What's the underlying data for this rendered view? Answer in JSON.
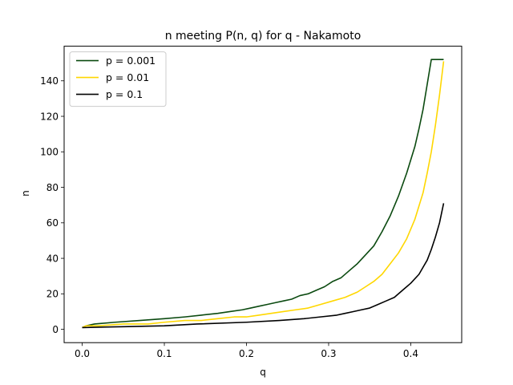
{
  "chart_data": {
    "type": "line",
    "title": "n meeting P(n, q) for q - Nakamoto",
    "xlabel": "q",
    "ylabel": "n",
    "xlim": [
      -0.022,
      0.462
    ],
    "ylim": [
      -7.5,
      159.5
    ],
    "xticks": [
      0.0,
      0.1,
      0.2,
      0.3,
      0.4
    ],
    "xtick_labels": [
      "0.0",
      "0.1",
      "0.2",
      "0.3",
      "0.4"
    ],
    "yticks": [
      0,
      20,
      40,
      60,
      80,
      100,
      120,
      140
    ],
    "ytick_labels": [
      "0",
      "20",
      "40",
      "60",
      "80",
      "100",
      "120",
      "140"
    ],
    "grid": false,
    "legend_position": "upper left",
    "series": [
      {
        "name": "p = 0.001",
        "color": "#0b4a10",
        "x": [
          0.0,
          0.005,
          0.015,
          0.04,
          0.07,
          0.1,
          0.125,
          0.145,
          0.165,
          0.18,
          0.195,
          0.205,
          0.215,
          0.225,
          0.235,
          0.245,
          0.255,
          0.265,
          0.275,
          0.285,
          0.295,
          0.305,
          0.315,
          0.325,
          0.335,
          0.345,
          0.355,
          0.365,
          0.375,
          0.385,
          0.395,
          0.405,
          0.41,
          0.415,
          0.42,
          0.425,
          0.44
        ],
        "y": [
          1,
          2,
          3,
          4,
          5,
          6,
          7,
          8,
          9,
          10,
          11,
          12,
          13,
          14,
          15,
          16,
          17,
          19,
          20,
          22,
          24,
          27,
          29,
          33,
          37,
          42,
          47,
          55,
          64,
          75,
          88,
          103,
          113,
          124,
          138,
          152,
          152
        ]
      },
      {
        "name": "p = 0.01",
        "color": "#ffd700",
        "x": [
          0.0,
          0.005,
          0.02,
          0.05,
          0.08,
          0.1,
          0.125,
          0.145,
          0.165,
          0.185,
          0.2,
          0.215,
          0.23,
          0.245,
          0.26,
          0.275,
          0.29,
          0.305,
          0.32,
          0.335,
          0.345,
          0.355,
          0.365,
          0.375,
          0.385,
          0.395,
          0.405,
          0.415,
          0.42,
          0.425,
          0.43,
          0.435,
          0.44
        ],
        "y": [
          1,
          2,
          2,
          3,
          3,
          4,
          5,
          5,
          6,
          7,
          7,
          8,
          9,
          10,
          11,
          12,
          14,
          16,
          18,
          21,
          24,
          27,
          31,
          37,
          43,
          51,
          62,
          77,
          88,
          100,
          115,
          132,
          151
        ]
      },
      {
        "name": "p = 0.1",
        "color": "#000000",
        "x": [
          0.0,
          0.05,
          0.1,
          0.14,
          0.2,
          0.24,
          0.27,
          0.29,
          0.31,
          0.32,
          0.33,
          0.34,
          0.35,
          0.36,
          0.37,
          0.38,
          0.39,
          0.4,
          0.41,
          0.415,
          0.42,
          0.425,
          0.43,
          0.435,
          0.44
        ],
        "y": [
          1,
          1.5,
          2,
          3,
          4,
          5,
          6,
          7,
          8,
          9,
          10,
          11,
          12,
          14,
          16,
          18,
          22,
          26,
          31,
          35,
          39,
          45,
          52,
          60,
          71
        ]
      }
    ]
  }
}
